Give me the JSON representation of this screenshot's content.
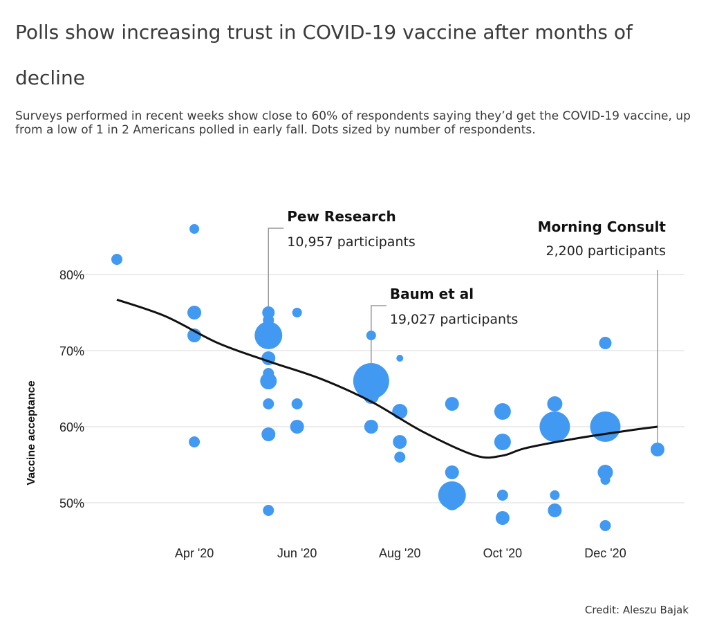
{
  "header": {
    "title": "Polls show increasing trust in COVID-19 vaccine after months of decline",
    "subtitle": "Surveys performed in recent weeks show close to 60% of respondents saying they’d get the COVID-19 vaccine, up from a low of 1 in 2 Americans polled in early fall. Dots sized by number of respondents."
  },
  "credit": "Credit: Aleszu Bajak",
  "colors": {
    "dot": "#4199f2",
    "trend": "#111111",
    "grid": "#e6e6e6",
    "annotation_line": "#999999"
  },
  "chart_data": {
    "type": "scatter",
    "title": "",
    "xlabel": "",
    "ylabel": "Vaccine acceptance",
    "x_ticks": [
      "Apr '20",
      "Jun '20",
      "Aug '20",
      "Oct '20",
      "Dec '20"
    ],
    "y_ticks": [
      "50%",
      "60%",
      "70%",
      "80%"
    ],
    "ylim": [
      45,
      88
    ],
    "grid": true,
    "points": [
      {
        "x": "2020-02-15",
        "y": 82,
        "r": 8
      },
      {
        "x": "2020-04-01",
        "y": 86,
        "r": 7
      },
      {
        "x": "2020-04-01",
        "y": 75,
        "r": 10
      },
      {
        "x": "2020-04-01",
        "y": 72,
        "r": 10
      },
      {
        "x": "2020-04-01",
        "y": 58,
        "r": 8
      },
      {
        "x": "2020-05-15",
        "y": 75,
        "r": 9
      },
      {
        "x": "2020-05-15",
        "y": 74,
        "r": 8
      },
      {
        "x": "2020-05-15",
        "y": 72,
        "r": 20
      },
      {
        "x": "2020-05-15",
        "y": 69,
        "r": 10
      },
      {
        "x": "2020-05-15",
        "y": 67,
        "r": 8
      },
      {
        "x": "2020-05-15",
        "y": 66,
        "r": 12
      },
      {
        "x": "2020-05-15",
        "y": 63,
        "r": 8
      },
      {
        "x": "2020-05-15",
        "y": 59,
        "r": 10
      },
      {
        "x": "2020-05-15",
        "y": 49,
        "r": 8
      },
      {
        "x": "2020-06-01",
        "y": 75,
        "r": 7
      },
      {
        "x": "2020-06-01",
        "y": 63,
        "r": 8
      },
      {
        "x": "2020-06-01",
        "y": 60,
        "r": 10
      },
      {
        "x": "2020-07-15",
        "y": 72,
        "r": 7
      },
      {
        "x": "2020-07-15",
        "y": 66,
        "r": 26
      },
      {
        "x": "2020-07-15",
        "y": 64,
        "r": 11
      },
      {
        "x": "2020-07-15",
        "y": 60,
        "r": 10
      },
      {
        "x": "2020-08-01",
        "y": 69,
        "r": 5
      },
      {
        "x": "2020-08-01",
        "y": 62,
        "r": 11
      },
      {
        "x": "2020-08-01",
        "y": 58,
        "r": 10
      },
      {
        "x": "2020-08-01",
        "y": 56,
        "r": 8
      },
      {
        "x": "2020-09-01",
        "y": 63,
        "r": 10
      },
      {
        "x": "2020-09-01",
        "y": 54,
        "r": 10
      },
      {
        "x": "2020-09-01",
        "y": 51,
        "r": 20
      },
      {
        "x": "2020-09-01",
        "y": 50,
        "r": 11
      },
      {
        "x": "2020-10-01",
        "y": 62,
        "r": 12
      },
      {
        "x": "2020-10-01",
        "y": 58,
        "r": 12
      },
      {
        "x": "2020-10-01",
        "y": 51,
        "r": 8
      },
      {
        "x": "2020-10-01",
        "y": 48,
        "r": 10
      },
      {
        "x": "2020-11-01",
        "y": 63,
        "r": 11
      },
      {
        "x": "2020-11-01",
        "y": 60,
        "r": 22
      },
      {
        "x": "2020-11-01",
        "y": 51,
        "r": 7
      },
      {
        "x": "2020-11-01",
        "y": 49,
        "r": 10
      },
      {
        "x": "2020-12-01",
        "y": 71,
        "r": 9
      },
      {
        "x": "2020-12-01",
        "y": 60,
        "r": 22
      },
      {
        "x": "2020-12-01",
        "y": 54,
        "r": 11
      },
      {
        "x": "2020-12-01",
        "y": 53,
        "r": 7
      },
      {
        "x": "2020-12-01",
        "y": 47,
        "r": 8
      },
      {
        "x": "2021-01-01",
        "y": 57,
        "r": 10
      }
    ],
    "trend": [
      {
        "x": "2020-02-15",
        "y": 76.7
      },
      {
        "x": "2020-03-15",
        "y": 74.5
      },
      {
        "x": "2020-04-15",
        "y": 71
      },
      {
        "x": "2020-05-15",
        "y": 68.6
      },
      {
        "x": "2020-06-15",
        "y": 66.3
      },
      {
        "x": "2020-07-15",
        "y": 63.3
      },
      {
        "x": "2020-08-15",
        "y": 59.3
      },
      {
        "x": "2020-09-15",
        "y": 56.2
      },
      {
        "x": "2020-10-01",
        "y": 56.2
      },
      {
        "x": "2020-10-15",
        "y": 57.2
      },
      {
        "x": "2020-11-15",
        "y": 58.5
      },
      {
        "x": "2020-12-15",
        "y": 59.5
      },
      {
        "x": "2021-01-01",
        "y": 60
      }
    ],
    "annotations": [
      {
        "name": "Pew Research",
        "count": "10,957 participants",
        "x": "2020-05-15",
        "y": 72
      },
      {
        "name": "Baum et al",
        "count": "19,027 participants",
        "x": "2020-07-15",
        "y": 66
      },
      {
        "name": "Morning Consult",
        "count": "2,200 participants",
        "x": "2021-01-01",
        "y": 57
      }
    ]
  }
}
